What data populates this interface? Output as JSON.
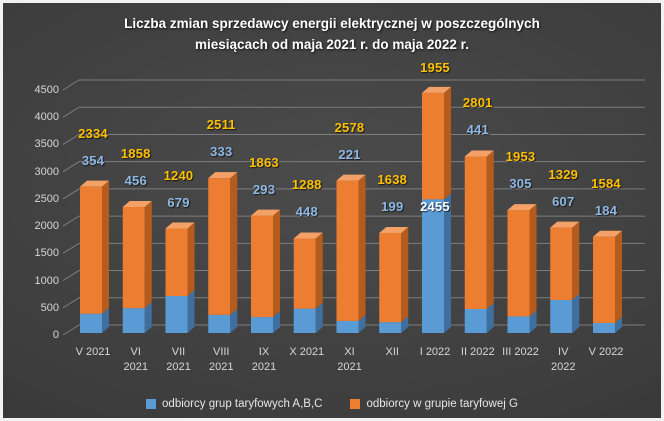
{
  "window": {
    "title": "Liczba zmian sprzedawcy energii elektrycznej w poszczególnych miesiącach od maja 2021 r. do maja 2022 r."
  },
  "chart_data": {
    "type": "bar",
    "stacked": true,
    "pseudo_3d": true,
    "title": "Liczba zmian sprzedawcy energii elektrycznej w poszczególnych miesiącach od maja 2021 r. do maja 2022 r.",
    "title_lines": [
      "Liczba zmian sprzedawcy energii elektrycznej w poszczególnych",
      "miesiącach od maja 2021 r. do maja 2022 r."
    ],
    "categories": [
      "V 2021",
      "VI 2021",
      "VII 2021",
      "VIII 2021",
      "IX 2021",
      "X 2021",
      "XI 2021",
      "XII",
      "I 2022",
      "II 2022",
      "III 2022",
      "IV 2022",
      "V 2022"
    ],
    "category_label_lines": [
      [
        "V 2021"
      ],
      [
        "VI",
        "2021"
      ],
      [
        "VII",
        "2021"
      ],
      [
        "VIII",
        "2021"
      ],
      [
        "IX",
        "2021"
      ],
      [
        "X 2021"
      ],
      [
        "XI",
        "2021"
      ],
      [
        "XII"
      ],
      [
        "I 2022"
      ],
      [
        "II 2022"
      ],
      [
        "III 2022"
      ],
      [
        "IV",
        "2022"
      ],
      [
        "V 2022"
      ]
    ],
    "series": [
      {
        "name": "odbiorcy grup taryfowych A,B,C",
        "color": "#5B9BD5",
        "side_color": "#3E6F9E",
        "top_color": "#87B9E2",
        "label_color": "#8FB9E4",
        "values": [
          354,
          456,
          679,
          333,
          293,
          448,
          221,
          199,
          2455,
          441,
          305,
          607,
          184
        ]
      },
      {
        "name": "odbiorcy w grupie taryfowej G",
        "color": "#ED7D31",
        "side_color": "#B55C1D",
        "top_color": "#F4A168",
        "label_color": "#FFC000",
        "values": [
          2334,
          1858,
          1240,
          2511,
          1863,
          1288,
          2578,
          1638,
          1955,
          2801,
          1953,
          1329,
          1584
        ]
      }
    ],
    "totals": [
      2688,
      2314,
      1919,
      2844,
      2156,
      1736,
      2799,
      1837,
      4410,
      3242,
      2258,
      1936,
      1768
    ],
    "ylim": [
      0,
      4500
    ],
    "ytick_step": 500,
    "yticks": [
      0,
      500,
      1000,
      1500,
      2000,
      2500,
      3000,
      3500,
      4000,
      4500
    ],
    "grid": true,
    "legend_position": "bottom",
    "highlight_label": {
      "category": "I 2022",
      "category_index": 8,
      "series_index": 0,
      "color": "#FFFFFF"
    }
  },
  "colors": {
    "background": "#3d3d3d",
    "frame_border": "#F2F2F2",
    "gridline": "#7d7d7d",
    "axis_text": "#D6D6D6",
    "title_text": "#FFFFFF",
    "label_yellow": "#FFC000",
    "label_blue": "#8FB9E4",
    "label_white": "#FFFFFF"
  }
}
